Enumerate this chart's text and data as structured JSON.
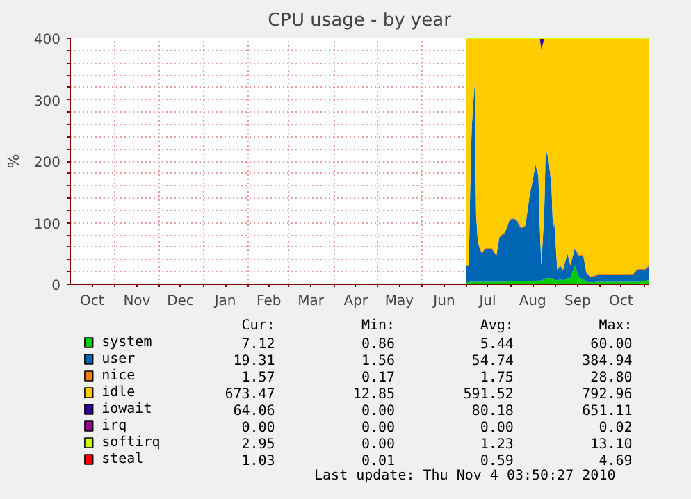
{
  "chart_data": {
    "type": "area",
    "stacked": true,
    "title": "CPU usage - by year",
    "ylabel": "%",
    "legend": "bottom",
    "grid": true,
    "xlim": [
      "2009-10-01",
      "2010-11-04"
    ],
    "xticks": [
      {
        "value": "2009-10-16",
        "label": "Oct"
      },
      {
        "value": "2009-11-01",
        "label": null
      },
      {
        "value": "2009-11-16",
        "label": "Nov"
      },
      {
        "value": "2009-12-01",
        "label": null
      },
      {
        "value": "2009-12-16",
        "label": "Dec"
      },
      {
        "value": "2010-01-01",
        "label": null
      },
      {
        "value": "2010-01-16",
        "label": "Jan"
      },
      {
        "value": "2010-02-01",
        "label": null
      },
      {
        "value": "2010-02-15",
        "label": "Feb"
      },
      {
        "value": "2010-03-01",
        "label": null
      },
      {
        "value": "2010-03-16",
        "label": "Mar"
      },
      {
        "value": "2010-04-01",
        "label": null
      },
      {
        "value": "2010-04-16",
        "label": "Apr"
      },
      {
        "value": "2010-05-01",
        "label": null
      },
      {
        "value": "2010-05-16",
        "label": "May"
      },
      {
        "value": "2010-06-01",
        "label": null
      },
      {
        "value": "2010-06-16",
        "label": "Jun"
      },
      {
        "value": "2010-07-01",
        "label": null
      },
      {
        "value": "2010-07-16",
        "label": "Jul"
      },
      {
        "value": "2010-08-01",
        "label": null
      },
      {
        "value": "2010-08-16",
        "label": "Aug"
      },
      {
        "value": "2010-09-01",
        "label": null
      },
      {
        "value": "2010-09-16",
        "label": "Sep"
      },
      {
        "value": "2010-10-01",
        "label": null
      },
      {
        "value": "2010-10-16",
        "label": "Oct"
      },
      {
        "value": "2010-11-01",
        "label": null
      }
    ],
    "ylim": [
      0,
      400
    ],
    "yticks": [
      0,
      {
        "value": 20,
        "label": null
      },
      {
        "value": 40,
        "label": null
      },
      {
        "value": 60,
        "label": null
      },
      {
        "value": 80,
        "label": null
      },
      100,
      {
        "value": 120,
        "label": null
      },
      {
        "value": 140,
        "label": null
      },
      {
        "value": 160,
        "label": null
      },
      {
        "value": 180,
        "label": null
      },
      200,
      {
        "value": 220,
        "label": null
      },
      {
        "value": 240,
        "label": null
      },
      {
        "value": 260,
        "label": null
      },
      {
        "value": 280,
        "label": null
      },
      300,
      {
        "value": 320,
        "label": null
      },
      {
        "value": 340,
        "label": null
      },
      {
        "value": 360,
        "label": null
      },
      {
        "value": 380,
        "label": null
      },
      400
    ],
    "x": [
      "2010-07-01",
      "2010-07-03",
      "2010-07-04",
      "2010-07-05",
      "2010-07-07",
      "2010-07-08",
      "2010-07-09",
      "2010-07-10",
      "2010-07-12",
      "2010-07-14",
      "2010-07-19",
      "2010-07-22",
      "2010-07-24",
      "2010-07-28",
      "2010-07-31",
      "2010-08-02",
      "2010-08-05",
      "2010-08-08",
      "2010-08-11",
      "2010-08-14",
      "2010-08-16",
      "2010-08-18",
      "2010-08-20",
      "2010-08-21",
      "2010-08-22",
      "2010-08-24",
      "2010-08-25",
      "2010-08-27",
      "2010-08-29",
      "2010-08-30",
      "2010-08-31",
      "2010-09-02",
      "2010-09-04",
      "2010-09-06",
      "2010-09-09",
      "2010-09-11",
      "2010-09-14",
      "2010-09-17",
      "2010-09-20",
      "2010-09-22",
      "2010-09-25",
      "2010-09-30",
      "2010-10-10",
      "2010-10-24",
      "2010-10-27",
      "2010-11-01",
      "2010-11-04"
    ],
    "series": [
      {
        "name": "system",
        "color": "#00cc00",
        "values": [
          3,
          3,
          4,
          4,
          4,
          4,
          4,
          4,
          4,
          4,
          4,
          4,
          4,
          4,
          5,
          5,
          5,
          5,
          5,
          5,
          5,
          5,
          6,
          6,
          6,
          8,
          10,
          10,
          10,
          10,
          8,
          6,
          8,
          6,
          10,
          10,
          30,
          12,
          8,
          4,
          3,
          4,
          4,
          4,
          4,
          5,
          7
        ]
      },
      {
        "name": "user",
        "color": "#0066b3",
        "values": [
          27,
          27,
          160,
          251,
          324,
          110,
          72,
          57,
          46,
          53,
          53,
          42,
          72,
          80,
          98,
          102,
          98,
          86,
          90,
          140,
          163,
          189,
          169,
          85,
          24,
          106,
          211,
          192,
          150,
          81,
          91,
          17,
          22,
          17,
          40,
          20,
          27,
          34,
          38,
          15,
          8,
          11,
          11,
          11,
          19,
          18,
          22
        ]
      },
      {
        "name": "nice",
        "color": "#ff8000",
        "values": [
          2,
          2,
          2,
          2,
          2,
          2,
          2,
          2,
          2,
          2,
          2,
          2,
          2,
          2,
          2,
          2,
          2,
          2,
          2,
          2,
          2,
          2,
          2,
          2,
          2,
          2,
          2,
          2,
          2,
          2,
          2,
          2,
          2,
          2,
          2,
          2,
          2,
          2,
          2,
          2,
          2,
          2,
          2,
          2,
          2,
          2,
          2
        ]
      },
      {
        "name": "idle",
        "color": "#ffcc00",
        "values": [
          367,
          367,
          233,
          142,
          69,
          283,
          321,
          336,
          347,
          340,
          340,
          351,
          321,
          313,
          294,
          290,
          294,
          306,
          302,
          252,
          229,
          203,
          222,
          306,
          350,
          283,
          176,
          195,
          237,
          306,
          298,
          374,
          367,
          374,
          347,
          367,
          340,
          351,
          351,
          378,
          386,
          382,
          382,
          382,
          374,
          374,
          368
        ]
      },
      {
        "name": "iowait",
        "color": "#330099",
        "values": [
          0,
          0,
          0,
          0,
          0,
          0,
          0,
          0,
          0,
          0,
          0,
          0,
          0,
          0,
          0,
          0,
          0,
          0,
          0,
          0,
          0,
          0,
          0,
          0,
          17,
          0,
          0,
          0,
          0,
          0,
          0,
          0,
          0,
          0,
          0,
          0,
          0,
          0,
          0,
          0,
          0,
          0,
          0,
          0,
          0,
          0,
          0
        ]
      },
      {
        "name": "irq",
        "color": "#990099",
        "values": [
          null,
          null,
          null,
          null,
          null,
          null,
          null,
          null,
          null,
          null,
          null,
          null,
          null,
          null,
          null,
          null,
          null,
          null,
          null,
          null,
          null,
          null,
          null,
          null,
          null,
          null,
          null,
          null,
          null,
          null,
          null,
          null,
          null,
          null,
          null,
          null,
          null,
          null,
          null,
          null,
          null,
          null,
          null,
          null,
          null,
          null,
          null
        ]
      },
      {
        "name": "softirq",
        "color": "#ccff00",
        "values": [
          1,
          1,
          1,
          1,
          1,
          1,
          1,
          1,
          1,
          1,
          1,
          1,
          1,
          1,
          1,
          1,
          1,
          1,
          1,
          1,
          1,
          1,
          1,
          1,
          1,
          1,
          1,
          1,
          1,
          1,
          1,
          1,
          1,
          1,
          1,
          1,
          1,
          1,
          1,
          1,
          1,
          1,
          1,
          1,
          1,
          1,
          1
        ]
      },
      {
        "name": "steal",
        "color": "#ff0000",
        "values": [
          null,
          null,
          null,
          null,
          null,
          null,
          null,
          null,
          null,
          null,
          null,
          null,
          null,
          null,
          null,
          null,
          null,
          null,
          null,
          null,
          null,
          null,
          null,
          null,
          null,
          null,
          null,
          null,
          null,
          null,
          null,
          null,
          null,
          null,
          null,
          null,
          null,
          null,
          null,
          null,
          null,
          null,
          null,
          null,
          null,
          null,
          null
        ]
      }
    ],
    "annotations": [
      "Cur:",
      "Min:",
      "Avg:",
      "Max:",
      "7.12",
      "0.86",
      "5.44",
      "60.00",
      "19.31",
      "1.56",
      "54.74",
      "384.94",
      "1.57",
      "0.17",
      "1.75",
      "28.80",
      "673.47",
      "12.85",
      "591.52",
      "792.96",
      "64.06",
      "0.00",
      "80.18",
      "651.11",
      "0.00",
      "0.00",
      "0.00",
      "0.02",
      "2.95",
      "0.00",
      "1.23",
      "13.10",
      "1.03",
      "0.01",
      "0.59",
      "4.69",
      "Last update:  Thu Nov  4 03:50:27 2010"
    ]
  }
}
